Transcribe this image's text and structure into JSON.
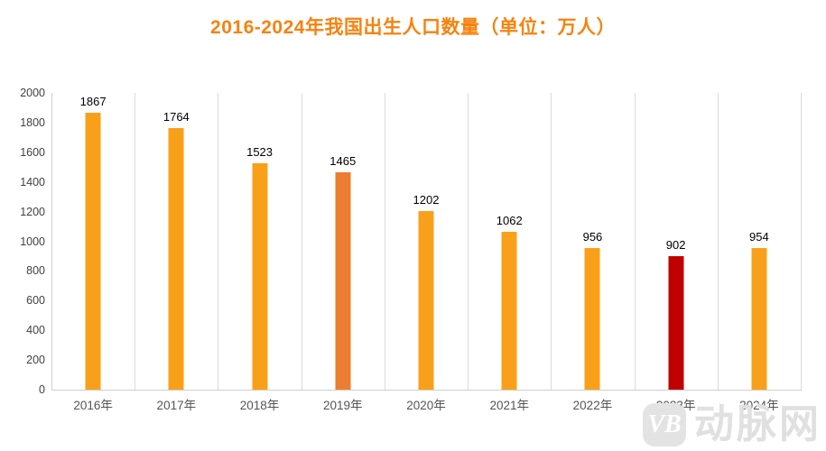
{
  "title": "2016-2024年我国出生人口数量（单位：万人）",
  "colors": {
    "title": "#F7820E",
    "bar_default": "#F9A01B",
    "bar_highlight_orange": "#ED7D31",
    "bar_highlight_red": "#C00000",
    "gridline": "#DBDBDB",
    "axis_line": "#CFCFCF",
    "ytick_text": "#404040",
    "xlabel_text": "#555555",
    "data_label_text": "#000000",
    "watermark_gray": "#E0E0E0"
  },
  "chart_data": {
    "type": "bar",
    "title": "2016-2024年我国出生人口数量（单位：万人）",
    "categories": [
      "2016年",
      "2017年",
      "2018年",
      "2019年",
      "2020年",
      "2021年",
      "2022年",
      "2023年",
      "2024年"
    ],
    "values": [
      1867,
      1764,
      1523,
      1465,
      1202,
      1062,
      956,
      902,
      954
    ],
    "bar_colors": [
      "#F9A01B",
      "#F9A01B",
      "#F9A01B",
      "#ED7D31",
      "#F9A01B",
      "#F9A01B",
      "#F9A01B",
      "#C00000",
      "#F9A01B"
    ],
    "xlabel": "",
    "ylabel": "",
    "ylim": [
      0,
      2000
    ],
    "yticks": [
      0,
      200,
      400,
      600,
      800,
      1000,
      1200,
      1400,
      1600,
      1800,
      2000
    ],
    "grid": "vertical-only",
    "data_labels": true,
    "legend": "none"
  },
  "watermark": {
    "logo_text": "VB",
    "site_name": "动脉网"
  }
}
